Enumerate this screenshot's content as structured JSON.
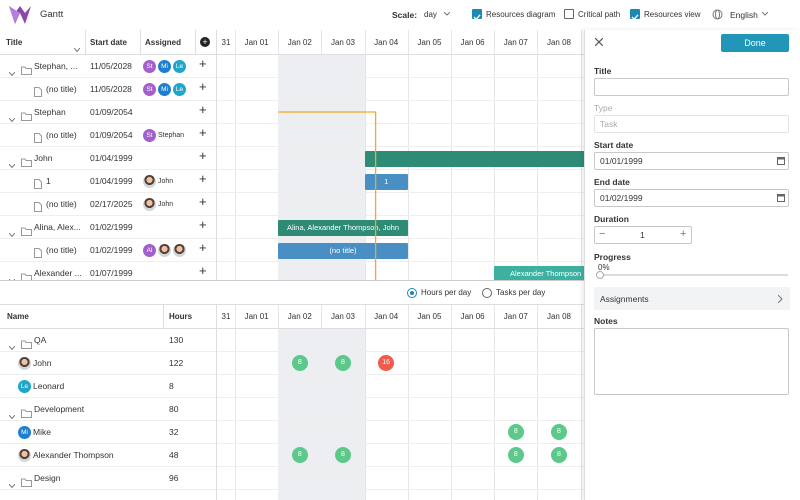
{
  "header": {
    "app_title": "Gantt",
    "scale_label": "Scale:",
    "scale_value": "day",
    "options": [
      {
        "label": "Resources diagram",
        "checked": true
      },
      {
        "label": "Critical path",
        "checked": false
      },
      {
        "label": "Resources view",
        "checked": true
      }
    ],
    "language": "English"
  },
  "task_grid": {
    "columns": [
      "Title",
      "Start date",
      "Assigned"
    ],
    "rows": [
      {
        "title": "Stephan, ...",
        "start": "11/05/2028",
        "group": true,
        "assigned": [
          {
            "initials": "St",
            "color": "#a35fcc"
          },
          {
            "initials": "Mi",
            "color": "#1e7fd0"
          },
          {
            "initials": "Le",
            "color": "#1fa7c9"
          }
        ]
      },
      {
        "title": "(no title)",
        "start": "11/05/2028",
        "group": false,
        "assigned": [
          {
            "initials": "St",
            "color": "#a35fcc"
          },
          {
            "initials": "Mi",
            "color": "#1e7fd0"
          },
          {
            "initials": "Le",
            "color": "#1fa7c9"
          }
        ]
      },
      {
        "title": "Stephan",
        "start": "01/09/2054",
        "group": true,
        "assigned": []
      },
      {
        "title": "(no title)",
        "start": "01/09/2054",
        "group": false,
        "assigned": [
          {
            "initials": "St",
            "color": "#a35fcc"
          }
        ],
        "assigned_name": "Stephan"
      },
      {
        "title": "John",
        "start": "01/04/1999",
        "group": true,
        "assigned": []
      },
      {
        "title": "1",
        "start": "01/04/1999",
        "group": false,
        "assigned": [
          {
            "photo": true
          }
        ],
        "assigned_name": "John"
      },
      {
        "title": "(no title)",
        "start": "02/17/2025",
        "group": false,
        "assigned": [
          {
            "photo": true
          }
        ],
        "assigned_name": "John"
      },
      {
        "title": "Alina, Alex...",
        "start": "01/02/1999",
        "group": true,
        "assigned": [],
        "bar_label": "Alina, Alexander Thompson, John"
      },
      {
        "title": "(no title)",
        "start": "01/02/1999",
        "group": false,
        "assigned": [
          {
            "initials": "Al",
            "color": "#a35fcc"
          },
          {
            "photo": true
          },
          {
            "photo": true
          }
        ]
      },
      {
        "title": "Alexander ...",
        "start": "01/07/1999",
        "group": true,
        "assigned": [],
        "bar_label": "Alexander Thompson"
      }
    ]
  },
  "timeline": {
    "dates": [
      "31",
      "Jan 01",
      "Jan 02",
      "Jan 03",
      "Jan 04",
      "Jan 05",
      "Jan 06",
      "Jan 07",
      "Jan 08"
    ]
  },
  "form": {
    "done": "Done",
    "title_label": "Title",
    "type_label": "Type",
    "type_value": "Task",
    "start_label": "Start date",
    "start_value": "01/01/1999",
    "end_label": "End date",
    "end_value": "01/02/1999",
    "duration_label": "Duration",
    "duration_value": 1,
    "progress_label": "Progress",
    "progress_text": "0%",
    "assignments": "Assignments",
    "notes": "Notes"
  },
  "resource_view": {
    "modes": [
      {
        "label": "Hours per day",
        "checked": true
      },
      {
        "label": "Tasks per day",
        "checked": false
      }
    ],
    "columns": [
      "Name",
      "Hours"
    ],
    "rows": [
      {
        "name": "QA",
        "hours": 130,
        "group": true,
        "load": [
          null,
          null,
          null,
          null,
          null,
          null,
          null,
          null,
          null
        ]
      },
      {
        "name": "John",
        "hours": 122,
        "group": false,
        "photo": true,
        "load": [
          null,
          null,
          8,
          8,
          16,
          null,
          null,
          null,
          null
        ]
      },
      {
        "name": "Leonard",
        "hours": 8,
        "group": false,
        "initials": "Le",
        "color": "#1fa7c9",
        "load": [
          null,
          null,
          null,
          null,
          null,
          null,
          null,
          null,
          null
        ]
      },
      {
        "name": "Development",
        "hours": 80,
        "group": true,
        "load": [
          null,
          null,
          null,
          null,
          null,
          null,
          null,
          null,
          null
        ]
      },
      {
        "name": "Mike",
        "hours": 32,
        "group": false,
        "initials": "Mi",
        "color": "#1e7fd0",
        "load": [
          null,
          null,
          null,
          null,
          null,
          null,
          null,
          8,
          8
        ]
      },
      {
        "name": "Alexander Thompson",
        "hours": 48,
        "group": false,
        "photo": true,
        "load": [
          null,
          null,
          8,
          8,
          null,
          null,
          null,
          8,
          8
        ]
      },
      {
        "name": "Design",
        "hours": 96,
        "group": true,
        "load": [
          null,
          null,
          null,
          null,
          null,
          null,
          null,
          null,
          null
        ]
      }
    ]
  }
}
